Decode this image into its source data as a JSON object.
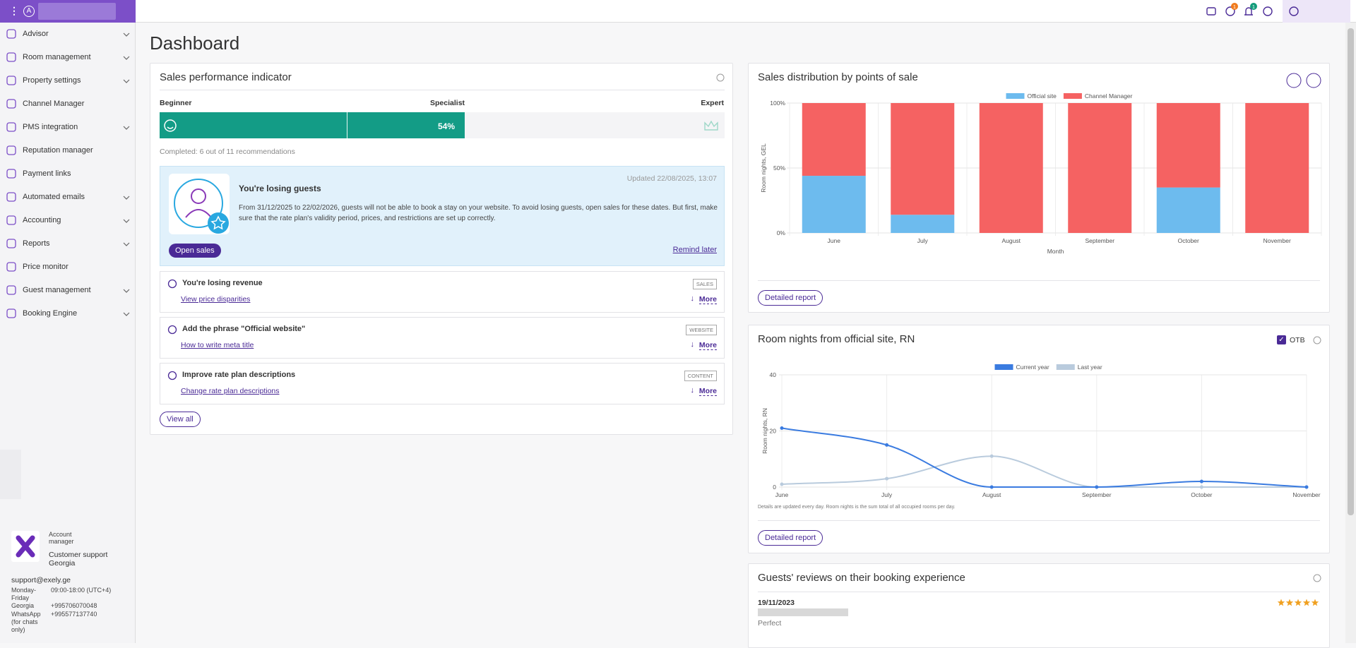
{
  "header": {
    "avatar": "A",
    "settings_badge": 1,
    "notifications_badge": 1
  },
  "sidebar": {
    "items": [
      {
        "label": "Advisor",
        "expandable": true
      },
      {
        "label": "Room management",
        "expandable": true
      },
      {
        "label": "Property settings",
        "expandable": true
      },
      {
        "label": "Channel Manager",
        "expandable": false
      },
      {
        "label": "PMS integration",
        "expandable": true
      },
      {
        "label": "Reputation manager",
        "expandable": false
      },
      {
        "label": "Payment links",
        "expandable": false
      },
      {
        "label": "Automated emails",
        "expandable": true
      },
      {
        "label": "Accounting",
        "expandable": true
      },
      {
        "label": "Reports",
        "expandable": true
      },
      {
        "label": "Price monitor",
        "expandable": false
      },
      {
        "label": "Guest management",
        "expandable": true
      },
      {
        "label": "Booking Engine",
        "expandable": true
      }
    ],
    "support": {
      "role": "Account manager",
      "name": "Customer support Georgia",
      "email": "support@exely.ge",
      "rows": [
        [
          "Monday-Friday",
          "09:00-18:00 (UTC+4)"
        ],
        [
          "Georgia",
          "+995706070048"
        ],
        [
          "WhatsApp (for chats only)",
          "+995577137740"
        ]
      ]
    }
  },
  "page_title": "Dashboard",
  "performance": {
    "title": "Sales performance indicator",
    "levels": [
      "Beginner",
      "Specialist",
      "Expert"
    ],
    "progress": 54,
    "progress_label": "54%",
    "completed": "Completed: 6 out of 11 recommendations",
    "alert": {
      "updated": "Updated 22/08/2025, 13:07",
      "title": "You're losing guests",
      "text": "From 31/12/2025 to 22/02/2026, guests will not be able to book a stay on your website. To avoid losing guests, open sales for these dates. But first, make sure that the rate plan's validity period, prices, and restrictions are set up correctly.",
      "button": "Open sales",
      "link": "Remind later"
    },
    "recommendations": [
      {
        "title": "You're losing revenue",
        "link": "View price disparities",
        "tag": "SALES",
        "more": "More"
      },
      {
        "title": "Add the phrase \"Official website\"",
        "link": "How to write meta title",
        "tag": "WEBSITE",
        "more": "More"
      },
      {
        "title": "Improve rate plan descriptions",
        "link": "Change rate plan descriptions",
        "tag": "CONTENT",
        "more": "More"
      }
    ],
    "view_all": "View all"
  },
  "chart_data": [
    {
      "type": "bar",
      "stacked": true,
      "title": "Sales distribution by points of sale",
      "categories": [
        "June",
        "July",
        "August",
        "September",
        "October",
        "November"
      ],
      "series": [
        {
          "name": "Official site",
          "color": "#6dbbee",
          "values": [
            44,
            14,
            0,
            0,
            35,
            0
          ]
        },
        {
          "name": "Channel Manager",
          "color": "#f56262",
          "values": [
            56,
            86,
            100,
            100,
            65,
            100
          ]
        }
      ],
      "ylim": [
        0,
        100
      ],
      "yticks": [
        {
          "value": 0,
          "label": "0%"
        },
        {
          "value": 50,
          "label": "50%"
        },
        {
          "value": 100,
          "label": "100%"
        }
      ],
      "ylabel": "Room nights, GEL",
      "xlabel": "Month",
      "grid": true,
      "legend": "top",
      "button": "Detailed report"
    },
    {
      "type": "line",
      "title": "Room nights from official site, RN",
      "toggle": "OTB",
      "categories": [
        "June",
        "July",
        "August",
        "September",
        "October",
        "November"
      ],
      "series": [
        {
          "name": "Current year",
          "color": "#3a7be0",
          "values": [
            21,
            15,
            0,
            0,
            2,
            0
          ]
        },
        {
          "name": "Last year",
          "color": "#b9cbdd",
          "values": [
            1,
            3,
            11,
            0,
            0,
            0
          ]
        }
      ],
      "ylim": [
        0,
        40
      ],
      "yticks": [
        0,
        20,
        40
      ],
      "ylabel": "Room nights, RN",
      "grid": true,
      "legend": "top",
      "note": "Details are updated every day. Room nights is the sum total of all occupied rooms per day.",
      "button": "Detailed report"
    }
  ],
  "reviews": {
    "title": "Guests' reviews on their booking experience",
    "items": [
      {
        "date": "19/11/2023",
        "comment": "Perfect",
        "rating": 5
      }
    ]
  }
}
